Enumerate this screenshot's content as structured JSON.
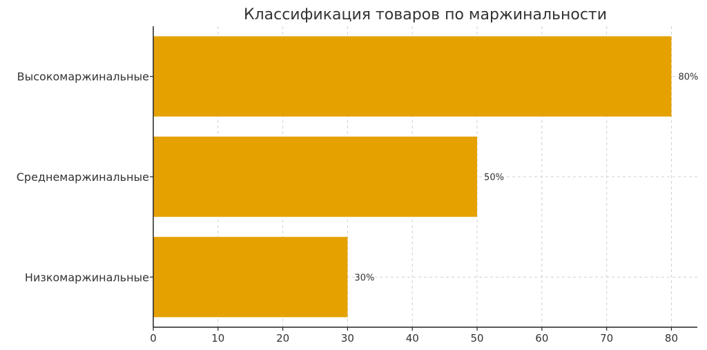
{
  "chart_data": {
    "type": "bar",
    "orientation": "horizontal",
    "title": "Классификация товаров по маржинальности",
    "xlabel": "",
    "ylabel": "",
    "categories": [
      "Высокомаржинальные",
      "Среднемаржинальные",
      "Низкомаржинальные"
    ],
    "values": [
      80,
      50,
      30
    ],
    "value_labels": [
      "80%",
      "50%",
      "30%"
    ],
    "xlim": [
      0,
      84
    ],
    "xticks": [
      0,
      10,
      20,
      30,
      40,
      50,
      60,
      70,
      80
    ],
    "grid": true,
    "bar_color": "#E5A100"
  }
}
